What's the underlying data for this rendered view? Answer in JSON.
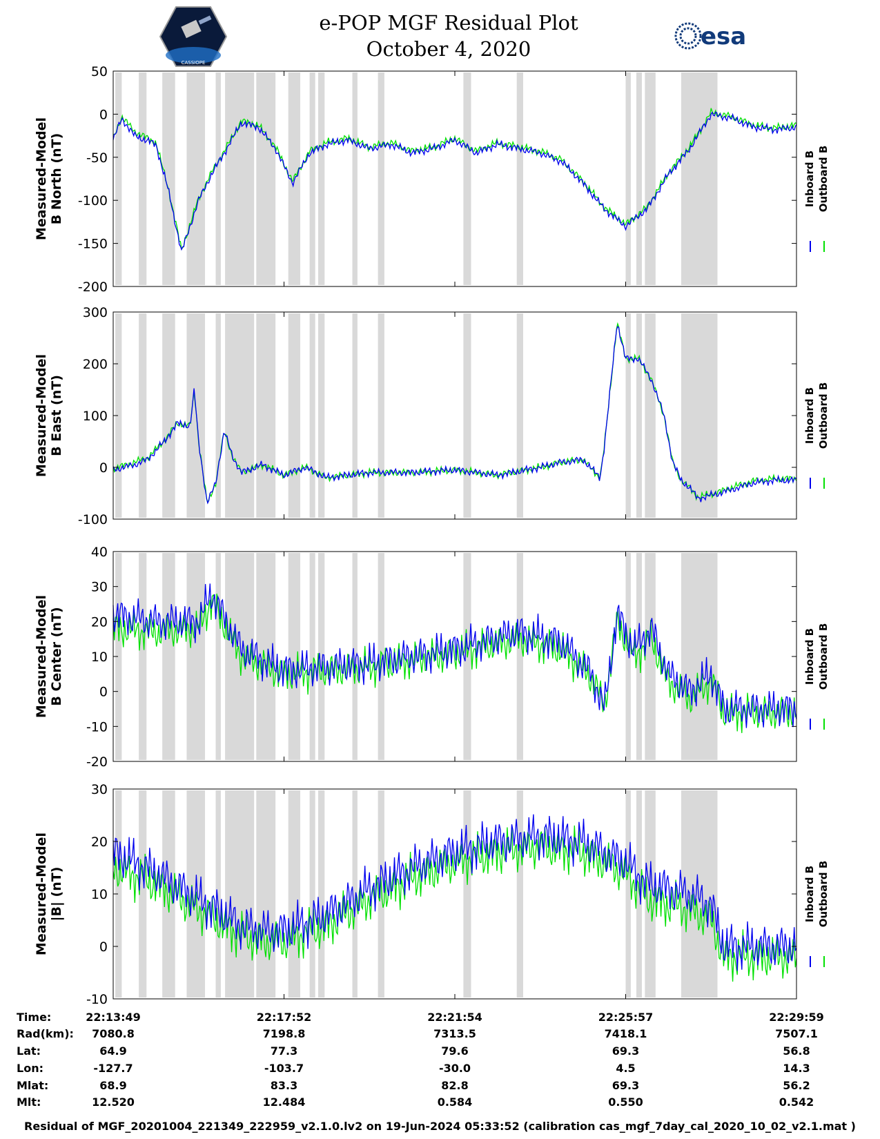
{
  "header": {
    "title_line1": "e-POP MGF Residual Plot",
    "title_line2": "October 4, 2020",
    "left_logo_text": "CASSIOPE",
    "right_logo_text": "esa"
  },
  "colors": {
    "inboard": "#0000ee",
    "outboard": "#00e000",
    "shade": "#d9d9d9"
  },
  "chart_data": [
    {
      "type": "line",
      "panel": "north",
      "ylabel_line1": "Measured-Model",
      "ylabel_line2": "B North (nT)",
      "ylim": [
        -200,
        50
      ],
      "yticks": [
        50,
        0,
        -50,
        -100,
        -150,
        -200
      ],
      "legend": [
        "Inboard B",
        "Outboard B"
      ],
      "x": [
        0,
        0.2,
        0.5,
        1.0,
        1.3,
        1.6,
        2.0,
        2.3,
        2.6,
        3.0,
        3.4,
        3.8,
        4.2,
        4.6,
        5.0,
        5.5,
        6.0,
        6.5,
        7.0,
        7.5,
        8.0,
        8.5,
        9.0,
        9.5,
        10.0,
        10.5,
        11.0,
        11.5,
        12.0,
        12.5,
        13.0,
        13.5,
        14.0,
        14.5,
        15.0,
        15.5,
        16.0
      ],
      "series": [
        {
          "name": "Inboard B",
          "values": [
            -30,
            -5,
            -25,
            -35,
            -90,
            -160,
            -100,
            -70,
            -45,
            -10,
            -15,
            -40,
            -80,
            -45,
            -35,
            -30,
            -40,
            -35,
            -45,
            -40,
            -30,
            -45,
            -35,
            -40,
            -45,
            -55,
            -80,
            -110,
            -130,
            -110,
            -70,
            -40,
            0,
            -5,
            -15,
            -18,
            -15
          ]
        },
        {
          "name": "Outboard B",
          "values": [
            -28,
            -3,
            -20,
            -33,
            -88,
            -158,
            -98,
            -68,
            -43,
            -8,
            -13,
            -38,
            -78,
            -43,
            -33,
            -28,
            -38,
            -33,
            -43,
            -38,
            -28,
            -43,
            -33,
            -38,
            -43,
            -53,
            -78,
            -108,
            -128,
            -108,
            -68,
            -38,
            2,
            -3,
            -13,
            -16,
            -13
          ]
        }
      ]
    },
    {
      "type": "line",
      "panel": "east",
      "ylabel_line1": "Measured-Model",
      "ylabel_line2": "B East (nT)",
      "ylim": [
        -100,
        300
      ],
      "yticks": [
        300,
        200,
        100,
        0,
        -100
      ],
      "legend": [
        "Inboard B",
        "Outboard B"
      ],
      "x": [
        0,
        0.5,
        0.8,
        1.2,
        1.5,
        1.8,
        1.9,
        2.0,
        2.2,
        2.4,
        2.6,
        2.8,
        3.0,
        3.5,
        4.0,
        4.5,
        5.0,
        6.0,
        7.0,
        8.0,
        9.0,
        10.0,
        10.5,
        11.0,
        11.4,
        11.5,
        11.8,
        12.0,
        12.3,
        12.6,
        12.9,
        13.1,
        13.3,
        13.5,
        13.7,
        14.2,
        14.6,
        15.0,
        15.5,
        16.0
      ],
      "series": [
        {
          "name": "Inboard B",
          "values": [
            -5,
            5,
            15,
            50,
            85,
            80,
            150,
            50,
            -70,
            -30,
            70,
            20,
            -10,
            5,
            -15,
            0,
            -20,
            -10,
            -10,
            -5,
            -15,
            0,
            10,
            15,
            -20,
            40,
            280,
            210,
            210,
            170,
            100,
            10,
            -25,
            -40,
            -60,
            -50,
            -40,
            -30,
            -25,
            -25
          ]
        },
        {
          "name": "Outboard B",
          "values": [
            -3,
            10,
            18,
            52,
            85,
            80,
            150,
            50,
            -70,
            -30,
            70,
            20,
            -10,
            5,
            -15,
            0,
            -20,
            -10,
            -10,
            -5,
            -15,
            0,
            10,
            15,
            -20,
            40,
            280,
            210,
            210,
            170,
            100,
            10,
            -25,
            -40,
            -58,
            -47,
            -36,
            -26,
            -22,
            -22
          ]
        }
      ]
    },
    {
      "type": "line",
      "panel": "center",
      "ylabel_line1": "Measured-Model",
      "ylabel_line2": "B Center (nT)",
      "ylim": [
        -20,
        40
      ],
      "yticks": [
        40,
        30,
        20,
        10,
        0,
        -10,
        -20
      ],
      "legend": [
        "Inboard B",
        "Outboard B"
      ],
      "x": [
        0,
        1.0,
        2.0,
        2.3,
        3.0,
        4.0,
        6.0,
        8.0,
        9.5,
        10.5,
        11.2,
        11.5,
        11.8,
        12.2,
        12.6,
        13.0,
        13.5,
        14.0,
        14.3,
        15.0,
        16.0
      ],
      "series": [
        {
          "name": "Inboard B",
          "values": [
            22,
            20,
            20,
            28,
            12,
            6,
            8,
            12,
            17,
            14,
            5,
            -5,
            22,
            12,
            18,
            5,
            0,
            5,
            -5,
            -5,
            -5
          ]
        },
        {
          "name": "Outboard B",
          "values": [
            18,
            17,
            18,
            26,
            10,
            5,
            7,
            11,
            15,
            12,
            4,
            -4,
            20,
            10,
            15,
            3,
            -2,
            3,
            -6,
            -6,
            -6
          ]
        }
      ]
    },
    {
      "type": "line",
      "panel": "magnitude",
      "ylabel_line1": "Measured-Model",
      "ylabel_line2": "|B| (nT)",
      "ylim": [
        -10,
        30
      ],
      "yticks": [
        30,
        20,
        10,
        0,
        -10
      ],
      "legend": [
        "Inboard B",
        "Outboard B"
      ],
      "x": [
        0,
        1.0,
        2.0,
        3.0,
        3.5,
        4.0,
        5.0,
        6.0,
        7.0,
        8.0,
        9.0,
        10.0,
        11.0,
        11.5,
        12.0,
        12.5,
        13.0,
        13.5,
        14.0,
        14.3,
        15.0,
        16.0
      ],
      "series": [
        {
          "name": "Inboard B",
          "values": [
            18,
            14,
            9,
            4,
            3,
            3,
            6,
            11,
            15,
            18,
            20,
            21,
            20,
            18,
            16,
            12,
            11,
            10,
            8,
            0,
            0,
            0
          ]
        },
        {
          "name": "Outboard B",
          "values": [
            15,
            12,
            7,
            2,
            1,
            1,
            4,
            9,
            13,
            16,
            18,
            19,
            18,
            16,
            14,
            9,
            8,
            7,
            5,
            -2,
            -2,
            -2
          ]
        }
      ]
    }
  ],
  "x_axis": {
    "ticks_position": [
      0,
      4,
      8,
      12,
      16
    ],
    "row_labels": [
      "Time:",
      "Rad(km):",
      "Lat:",
      "Lon:",
      "Mlat:",
      "Mlt:"
    ],
    "columns": [
      {
        "time": "22:13:49",
        "rad": "7080.8",
        "lat": "64.9",
        "lon": "-127.7",
        "mlat": "68.9",
        "mlt": "12.520"
      },
      {
        "time": "22:17:52",
        "rad": "7198.8",
        "lat": "77.3",
        "lon": "-103.7",
        "mlat": "83.3",
        "mlt": "12.484"
      },
      {
        "time": "22:21:54",
        "rad": "7313.5",
        "lat": "79.6",
        "lon": "-30.0",
        "mlat": "82.8",
        "mlt": "0.584"
      },
      {
        "time": "22:25:57",
        "rad": "7418.1",
        "lat": "69.3",
        "lon": "4.5",
        "mlat": "69.3",
        "mlt": "0.550"
      },
      {
        "time": "22:29:59",
        "rad": "7507.1",
        "lat": "56.8",
        "lon": "14.3",
        "mlat": "56.2",
        "mlt": "0.542"
      }
    ]
  },
  "shaded_intervals": [
    [
      0.05,
      0.2
    ],
    [
      0.6,
      0.78
    ],
    [
      1.15,
      1.45
    ],
    [
      1.72,
      2.15
    ],
    [
      2.4,
      2.52
    ],
    [
      2.62,
      3.3
    ],
    [
      3.35,
      3.8
    ],
    [
      4.1,
      4.38
    ],
    [
      4.6,
      4.73
    ],
    [
      4.8,
      4.95
    ],
    [
      5.6,
      5.72
    ],
    [
      6.2,
      6.35
    ],
    [
      8.2,
      8.38
    ],
    [
      9.45,
      9.6
    ],
    [
      12.0,
      12.12
    ],
    [
      12.25,
      12.38
    ],
    [
      12.45,
      12.7
    ],
    [
      13.3,
      14.15
    ]
  ],
  "footer": "Residual of MGF_20201004_221349_222959_v2.1.0.lv2 on 19-Jun-2024 05:33:52 (calibration cas_mgf_7day_cal_2020_10_02_v2.1.mat )"
}
